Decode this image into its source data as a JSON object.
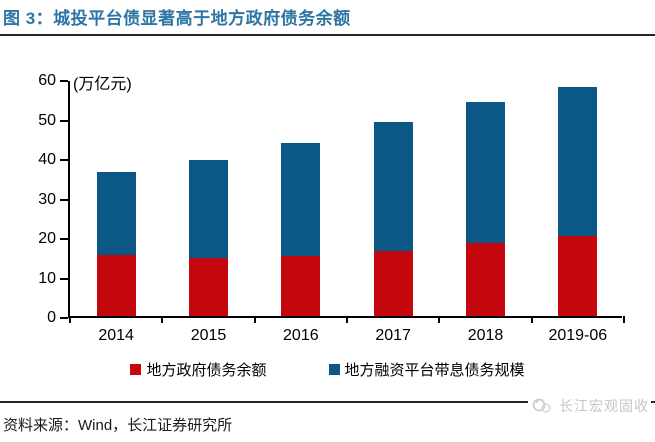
{
  "title": "图 3：城投平台债显著高于地方政府债务余额",
  "colors": {
    "title_blue": "#2E75A3",
    "bar_red": "#C3070C",
    "bar_blue": "#0B5786",
    "axis_black": "#000000",
    "rule_dark": "#262626",
    "watermark_gray": "#c6c6c6"
  },
  "chart_data": {
    "type": "bar",
    "stacked": true,
    "title": "城投平台债显著高于地方政府债务余额",
    "unit_label": "(万亿元)",
    "categories": [
      "2014",
      "2015",
      "2016",
      "2017",
      "2018",
      "2019-06"
    ],
    "series": [
      {
        "name": "地方政府债务余额",
        "color": "#C3070C",
        "values": [
          15.4,
          14.8,
          15.3,
          16.5,
          18.4,
          20.2
        ]
      },
      {
        "name": "地方融资平台带息债务规模",
        "color": "#0B5786",
        "values": [
          21.0,
          24.7,
          28.5,
          32.7,
          35.7,
          37.8
        ]
      }
    ],
    "totals": [
      36.4,
      39.5,
      43.8,
      49.2,
      54.1,
      58.0
    ],
    "ylim": [
      0,
      60
    ],
    "yticks": [
      0,
      10,
      20,
      30,
      40,
      50,
      60
    ],
    "grid": false,
    "legend_position": "bottom"
  },
  "footer": {
    "source": "资料来源：Wind，长江证券研究所",
    "watermark": "长江宏观固收"
  }
}
